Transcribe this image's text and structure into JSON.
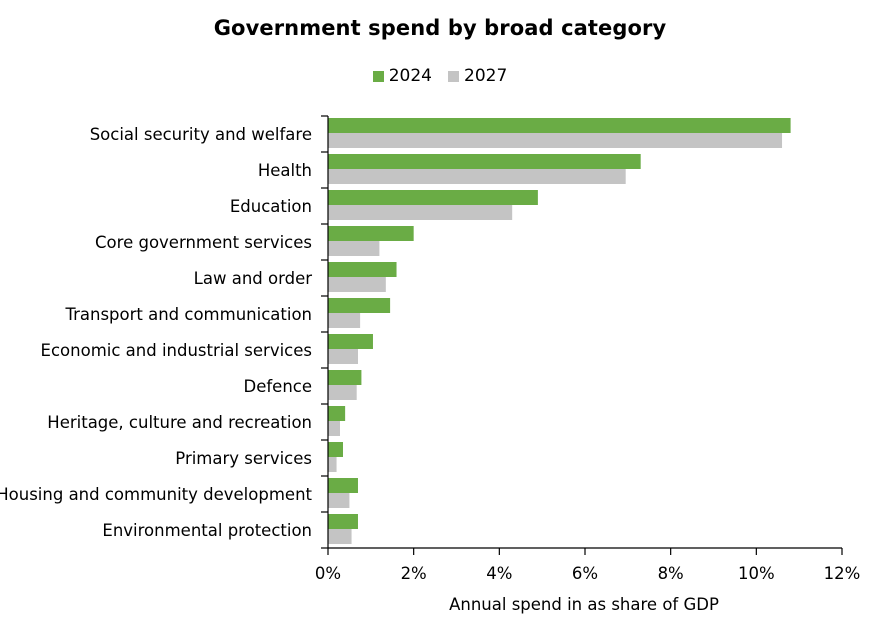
{
  "chart_data": {
    "type": "bar",
    "orientation": "horizontal",
    "title": "Government spend by broad category",
    "xlabel": "Annual spend in as share of GDP",
    "ylabel": "",
    "xlim": [
      0,
      12
    ],
    "x_ticks": [
      "0%",
      "2%",
      "4%",
      "6%",
      "8%",
      "10%",
      "12%"
    ],
    "grid": false,
    "legend_position": "top-center",
    "categories": [
      "Social security and welfare",
      "Health",
      "Education",
      "Core government services",
      "Law and order",
      "Transport and communication",
      "Economic and industrial services",
      "Defence",
      "Heritage, culture and recreation",
      "Primary services",
      "Housing and community development",
      "Environmental protection"
    ],
    "series": [
      {
        "name": "2024",
        "color": "#6aac45",
        "values": [
          10.8,
          7.3,
          4.9,
          2.0,
          1.6,
          1.45,
          1.05,
          0.78,
          0.4,
          0.35,
          0.7,
          0.7
        ]
      },
      {
        "name": "2027",
        "color": "#c4c4c4",
        "values": [
          10.6,
          6.95,
          4.3,
          1.2,
          1.35,
          0.75,
          0.7,
          0.67,
          0.28,
          0.2,
          0.5,
          0.55
        ]
      }
    ]
  }
}
